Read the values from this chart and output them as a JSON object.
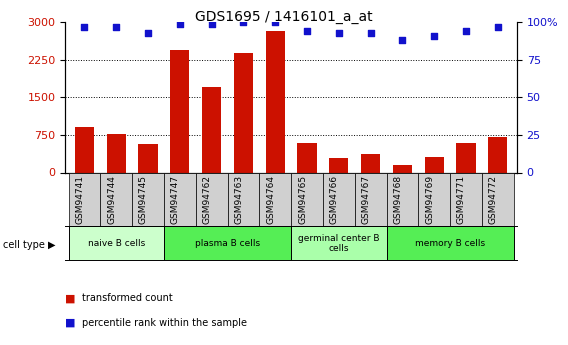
{
  "title": "GDS1695 / 1416101_a_at",
  "samples": [
    "GSM94741",
    "GSM94744",
    "GSM94745",
    "GSM94747",
    "GSM94762",
    "GSM94763",
    "GSM94764",
    "GSM94765",
    "GSM94766",
    "GSM94767",
    "GSM94768",
    "GSM94769",
    "GSM94771",
    "GSM94772"
  ],
  "bar_values": [
    900,
    760,
    560,
    2450,
    1700,
    2380,
    2820,
    590,
    280,
    370,
    140,
    310,
    590,
    700
  ],
  "dot_values": [
    97,
    97,
    93,
    99,
    99,
    100,
    100,
    94,
    93,
    93,
    88,
    91,
    94,
    97
  ],
  "bar_color": "#cc1100",
  "dot_color": "#1111cc",
  "ylim_left": [
    0,
    3000
  ],
  "ylim_right": [
    0,
    100
  ],
  "yticks_left": [
    0,
    750,
    1500,
    2250,
    3000
  ],
  "yticks_right": [
    0,
    25,
    50,
    75,
    100
  ],
  "cell_groups": [
    {
      "label": "naive B cells",
      "start": 0,
      "end": 3,
      "color": "#ccffcc"
    },
    {
      "label": "plasma B cells",
      "start": 3,
      "end": 7,
      "color": "#55ee55"
    },
    {
      "label": "germinal center B\ncells",
      "start": 7,
      "end": 10,
      "color": "#aaffaa"
    },
    {
      "label": "memory B cells",
      "start": 10,
      "end": 14,
      "color": "#55ee55"
    }
  ],
  "xticklabel_bg": "#d0d0d0",
  "plot_bg": "#ffffff",
  "legend_bar_label": "transformed count",
  "legend_dot_label": "percentile rank within the sample",
  "cell_type_label": "cell type"
}
